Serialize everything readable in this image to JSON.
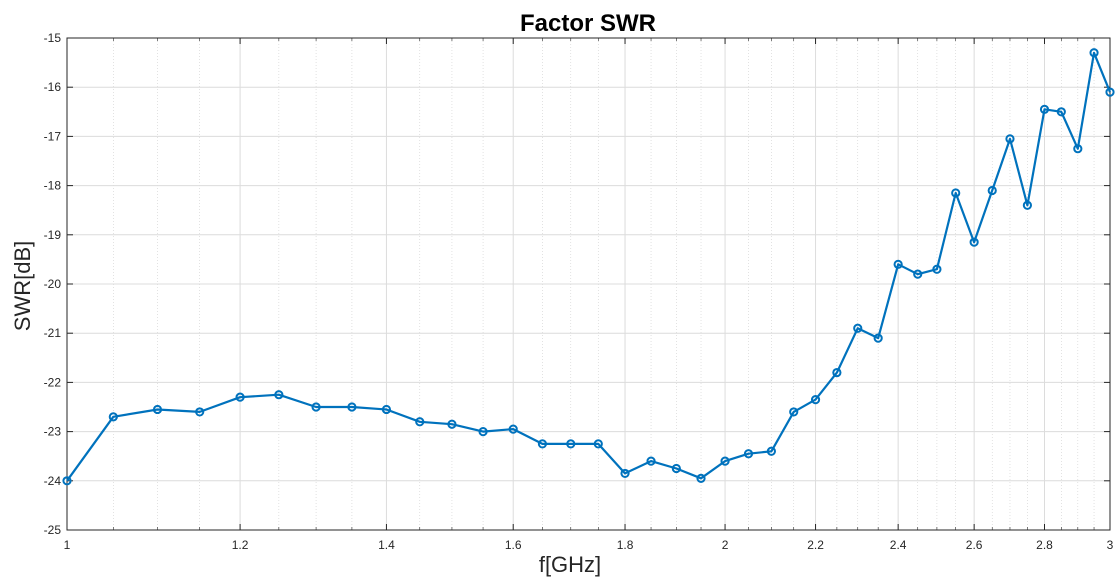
{
  "chart_data": {
    "type": "line",
    "title": "Factor SWR",
    "xlabel": "f[GHz]",
    "ylabel": "SWR[dB]",
    "xscale": "log",
    "xlim": [
      1,
      3
    ],
    "ylim": [
      -25,
      -15
    ],
    "grid": true,
    "minor_grid": true,
    "xticks": [
      1,
      1.2,
      1.4,
      1.6,
      1.8,
      2,
      2.2,
      2.4,
      2.6,
      2.8,
      3
    ],
    "xtick_labels": [
      "1",
      "1.2",
      "1.4",
      "1.6",
      "1.8",
      "2",
      "2.2",
      "2.4",
      "2.6",
      "2.8",
      "3"
    ],
    "yticks": [
      -25,
      -24,
      -23,
      -22,
      -21,
      -20,
      -19,
      -18,
      -17,
      -16,
      -15
    ],
    "ytick_labels": [
      "-25",
      "-24",
      "-23",
      "-22",
      "-21",
      "-20",
      "-19",
      "-18",
      "-17",
      "-16",
      "-15"
    ],
    "series": [
      {
        "color": "#0072BD",
        "marker": "circle",
        "x": [
          1.0,
          1.05,
          1.1,
          1.15,
          1.2,
          1.25,
          1.3,
          1.35,
          1.4,
          1.45,
          1.5,
          1.55,
          1.6,
          1.65,
          1.7,
          1.75,
          1.8,
          1.85,
          1.9,
          1.95,
          2.0,
          2.05,
          2.1,
          2.15,
          2.2,
          2.25,
          2.3,
          2.35,
          2.4,
          2.45,
          2.5,
          2.55,
          2.6,
          2.65,
          2.7,
          2.75,
          2.8,
          2.85,
          2.9,
          2.95,
          3.0
        ],
        "y": [
          -24.0,
          -22.7,
          -22.55,
          -22.6,
          -22.3,
          -22.25,
          -22.5,
          -22.5,
          -22.55,
          -22.8,
          -22.85,
          -23.0,
          -22.95,
          -23.25,
          -23.25,
          -23.25,
          -23.85,
          -23.6,
          -23.75,
          -23.95,
          -23.6,
          -23.45,
          -23.4,
          -22.6,
          -22.35,
          -21.8,
          -20.9,
          -21.1,
          -19.6,
          -19.8,
          -19.7,
          -18.15,
          -19.15,
          -18.1,
          -17.05,
          -18.4,
          -16.45,
          -16.5,
          -17.25,
          -15.3,
          -16.1
        ]
      }
    ]
  }
}
